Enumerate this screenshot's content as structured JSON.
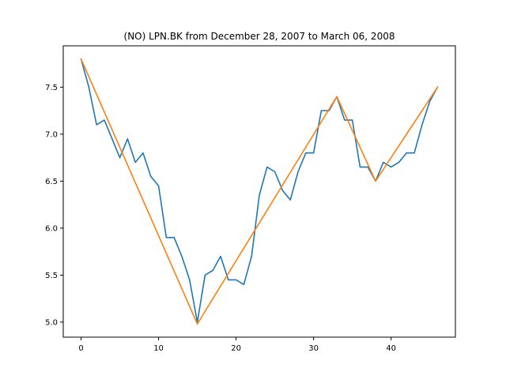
{
  "chart_data": {
    "type": "line",
    "title": "(NO) LPN.BK from December 28, 2007 to March 06, 2008",
    "xlabel": "",
    "ylabel": "",
    "xlim": [
      -2.3,
      48.3
    ],
    "ylim": [
      4.84,
      7.94
    ],
    "xticks": [
      0,
      10,
      20,
      30,
      40
    ],
    "yticks": [
      5.0,
      5.5,
      6.0,
      6.5,
      7.0,
      7.5
    ],
    "ytick_labels": [
      "5.0",
      "5.5",
      "6.0",
      "6.5",
      "7.0",
      "7.5"
    ],
    "grid": false,
    "series": [
      {
        "color": "#1f77b4",
        "x": [
          0,
          1,
          2,
          3,
          4,
          5,
          6,
          7,
          8,
          9,
          10,
          11,
          12,
          13,
          14,
          15,
          16,
          17,
          18,
          19,
          20,
          21,
          22,
          23,
          24,
          25,
          26,
          27,
          28,
          29,
          30,
          31,
          32,
          33,
          34,
          35,
          36,
          37,
          38,
          39,
          40,
          41,
          42,
          43,
          44,
          45,
          46
        ],
        "y": [
          7.8,
          7.5,
          7.1,
          7.15,
          6.95,
          6.75,
          6.95,
          6.7,
          6.8,
          6.55,
          6.45,
          5.9,
          5.9,
          5.7,
          5.45,
          5.0,
          5.5,
          5.55,
          5.7,
          5.45,
          5.45,
          5.4,
          5.7,
          6.35,
          6.65,
          6.6,
          6.4,
          6.3,
          6.6,
          6.8,
          6.8,
          7.25,
          7.25,
          7.4,
          7.15,
          7.15,
          6.65,
          6.65,
          6.5,
          6.7,
          6.65,
          6.7,
          6.8,
          6.8,
          7.1,
          7.35,
          7.5
        ]
      },
      {
        "color": "#ff7f0e",
        "x": [
          0,
          15,
          33,
          38,
          46
        ],
        "y": [
          7.8,
          4.98,
          7.4,
          6.5,
          7.5
        ]
      }
    ]
  }
}
